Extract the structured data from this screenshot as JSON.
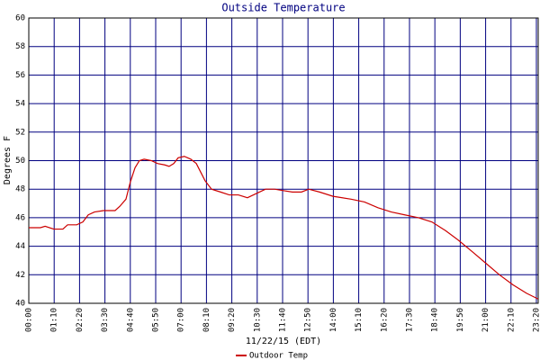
{
  "chart_data": {
    "type": "line",
    "title": "Outside Temperature",
    "x_label": "11/22/15 (EDT)",
    "y_label": "Degrees F",
    "x": [
      0,
      32,
      45,
      69,
      94,
      107,
      132,
      149,
      164,
      181,
      206,
      238,
      251,
      268,
      280,
      293,
      305,
      318,
      338,
      355,
      375,
      387,
      400,
      412,
      429,
      447,
      462,
      474,
      486,
      504,
      529,
      553,
      578,
      603,
      628,
      653,
      678,
      702,
      727,
      752,
      772,
      802,
      839,
      889,
      926,
      963,
      1000,
      1037,
      1075,
      1112,
      1149,
      1186,
      1224,
      1261,
      1298,
      1335,
      1373,
      1405
    ],
    "series": [
      {
        "name": "Outdoor Temp",
        "color": "#cc0000",
        "values": [
          45.3,
          45.3,
          45.4,
          45.2,
          45.2,
          45.5,
          45.5,
          45.7,
          46.2,
          46.4,
          46.5,
          46.5,
          46.8,
          47.3,
          48.5,
          49.5,
          50.0,
          50.1,
          50.0,
          49.8,
          49.7,
          49.6,
          49.8,
          50.2,
          50.3,
          50.1,
          49.8,
          49.2,
          48.6,
          48.0,
          47.8,
          47.6,
          47.6,
          47.4,
          47.7,
          48.0,
          48.0,
          47.9,
          47.8,
          47.8,
          48.0,
          47.8,
          47.5,
          47.3,
          47.1,
          46.7,
          46.4,
          46.2,
          46.0,
          45.7,
          45.1,
          44.4,
          43.6,
          42.8,
          42.0,
          41.3,
          40.7,
          40.3
        ]
      }
    ],
    "xlim": [
      0,
      1405
    ],
    "xticks": [
      {
        "value": 0,
        "label": "00:00"
      },
      {
        "value": 70,
        "label": "01:10"
      },
      {
        "value": 140,
        "label": "02:20"
      },
      {
        "value": 210,
        "label": "03:30"
      },
      {
        "value": 280,
        "label": "04:40"
      },
      {
        "value": 350,
        "label": "05:50"
      },
      {
        "value": 420,
        "label": "07:00"
      },
      {
        "value": 490,
        "label": "08:10"
      },
      {
        "value": 560,
        "label": "09:20"
      },
      {
        "value": 630,
        "label": "10:30"
      },
      {
        "value": 700,
        "label": "11:40"
      },
      {
        "value": 770,
        "label": "12:50"
      },
      {
        "value": 840,
        "label": "14:00"
      },
      {
        "value": 910,
        "label": "15:10"
      },
      {
        "value": 980,
        "label": "16:20"
      },
      {
        "value": 1050,
        "label": "17:30"
      },
      {
        "value": 1120,
        "label": "18:40"
      },
      {
        "value": 1190,
        "label": "19:50"
      },
      {
        "value": 1260,
        "label": "21:00"
      },
      {
        "value": 1330,
        "label": "22:10"
      },
      {
        "value": 1400,
        "label": "23:20"
      }
    ],
    "ylim": [
      40,
      60
    ],
    "yticks": [
      40,
      42,
      44,
      46,
      48,
      50,
      52,
      54,
      56,
      58,
      60
    ],
    "grid": true,
    "grid_color": "#000080"
  }
}
